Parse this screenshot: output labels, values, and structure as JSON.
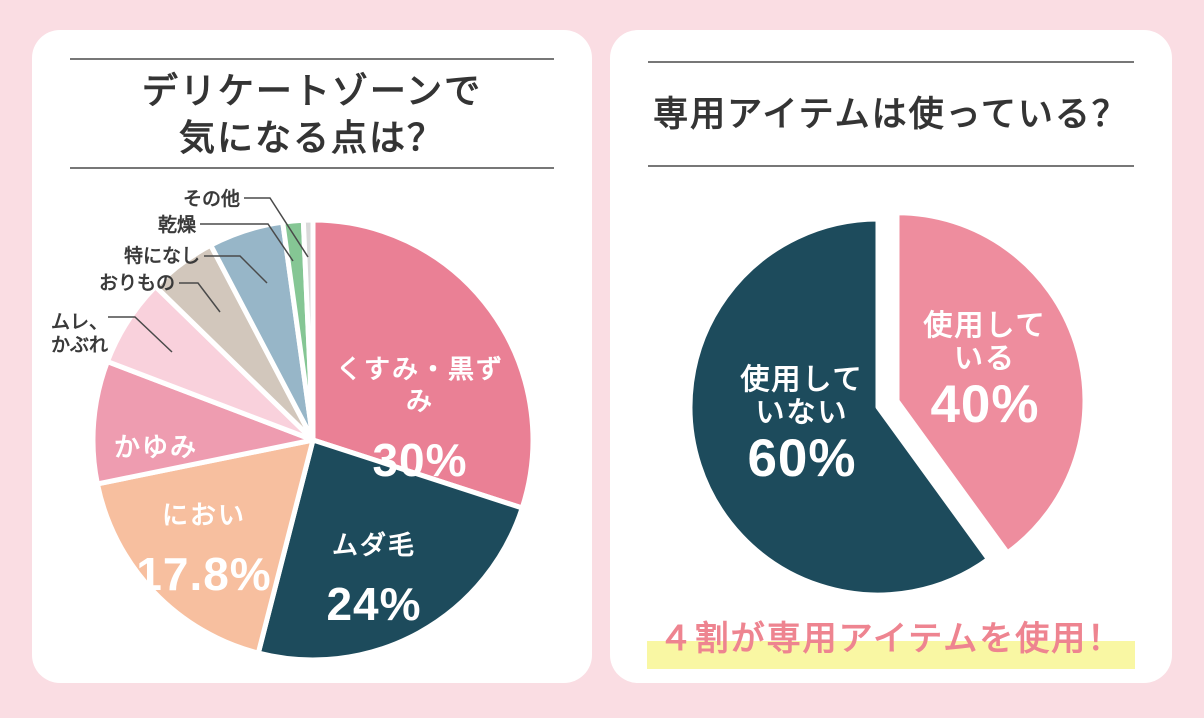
{
  "page": {
    "background_color": "#fadde3",
    "card_color": "#ffffff"
  },
  "chart_data": [
    {
      "type": "pie",
      "title": "デリケートゾーンで気になる点は？",
      "title_lines": [
        "デリケートゾーンで",
        "気になる点は？"
      ],
      "legend": "none",
      "start_angle_deg": 0,
      "slices": [
        {
          "label": "くすみ・黒ずみ",
          "value": 30,
          "display_value": "30%",
          "color": "#ea8095",
          "label_placement": "inside"
        },
        {
          "label": "ムダ毛",
          "value": 24,
          "display_value": "24%",
          "color": "#1d4b5c",
          "label_placement": "inside"
        },
        {
          "label": "におい",
          "value": 17.8,
          "display_value": "17.8%",
          "color": "#f7bf9f",
          "label_placement": "inside"
        },
        {
          "label": "かゆみ",
          "value": 9,
          "display_value": "",
          "color": "#ee9cb0",
          "label_placement": "inside",
          "estimated": true
        },
        {
          "label": "ムレ、かぶれ",
          "label_multiline": "ムレ、\nかぶれ",
          "value": 6.5,
          "color": "#f9d1dc",
          "label_placement": "outside",
          "estimated": true
        },
        {
          "label": "おりもの",
          "value": 5,
          "color": "#d2c7bc",
          "label_placement": "outside",
          "estimated": true
        },
        {
          "label": "特になし",
          "value": 5.5,
          "color": "#97b6c8",
          "label_placement": "outside",
          "estimated": true
        },
        {
          "label": "乾燥",
          "value": 1.5,
          "color": "#85c694",
          "label_placement": "outside",
          "estimated": true
        },
        {
          "label": "その他",
          "value": 0.7,
          "color": "#d9d9d9",
          "label_placement": "outside",
          "estimated": true
        }
      ]
    },
    {
      "type": "pie",
      "title": "専用アイテムは使っている？",
      "legend": "none",
      "start_angle_deg": 0,
      "slices": [
        {
          "label": "使用している",
          "label_multiline": "使用して\nいる",
          "value": 40,
          "display_value": "40%",
          "color": "#ee8d9e",
          "exploded": true
        },
        {
          "label": "使用していない",
          "label_multiline": "使用して\nいない",
          "value": 60,
          "display_value": "60%",
          "color": "#1d4b5c"
        }
      ],
      "annotation": "４割が専用アイテムを使用！",
      "annotation_text_color": "#ee8490",
      "annotation_highlight_color": "#f9f7a3"
    }
  ]
}
